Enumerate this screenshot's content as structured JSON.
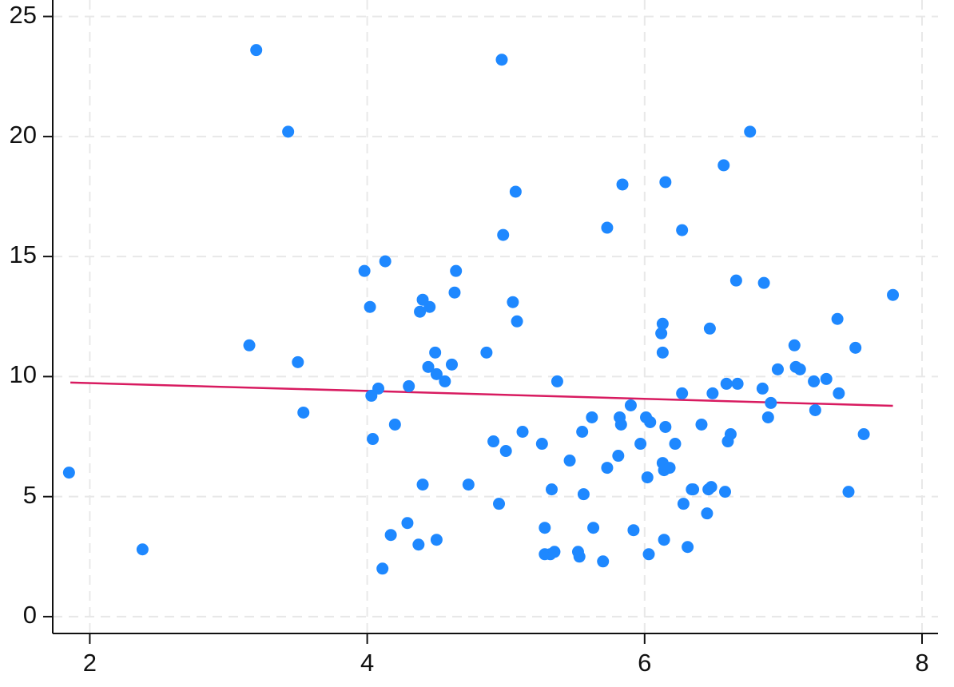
{
  "chart_data": {
    "type": "scatter",
    "title": "",
    "xlabel": "",
    "ylabel": "",
    "xlim": [
      1.8,
      8.0
    ],
    "ylim": [
      -1.2,
      25.8
    ],
    "x_ticks": [
      2,
      4,
      6,
      8
    ],
    "y_ticks": [
      0,
      5,
      10,
      15,
      20,
      25
    ],
    "x_tick_labels": [
      "2",
      "4",
      "6",
      "8"
    ],
    "y_tick_labels": [
      "0",
      "5",
      "10",
      "15",
      "20",
      "25"
    ],
    "grid": true,
    "legend": "none",
    "colors": {
      "points": "#1E88FF",
      "trend_line": "#D81B60",
      "grid": "#E8E8E8",
      "axis": "#111111"
    },
    "series": [
      {
        "type": "scatter",
        "x": [
          1.85,
          2.38,
          3.15,
          3.2,
          3.43,
          3.5,
          3.54,
          3.98,
          4.03,
          4.02,
          4.04,
          4.08,
          4.11,
          4.13,
          4.17,
          4.2,
          4.29,
          4.3,
          4.37,
          4.38,
          4.4,
          4.4,
          4.44,
          4.45,
          4.49,
          4.5,
          4.5,
          4.56,
          4.61,
          4.63,
          4.64,
          4.73,
          4.86,
          4.91,
          4.95,
          4.97,
          4.98,
          5.0,
          5.05,
          5.07,
          5.08,
          5.12,
          5.26,
          5.28,
          5.28,
          5.32,
          5.33,
          5.35,
          5.37,
          5.46,
          5.52,
          5.53,
          5.55,
          5.56,
          5.62,
          5.63,
          5.7,
          5.73,
          5.73,
          5.81,
          5.82,
          5.83,
          5.84,
          5.9,
          5.92,
          5.97,
          6.01,
          6.02,
          6.03,
          6.04,
          6.12,
          6.13,
          6.13,
          6.13,
          6.14,
          6.14,
          6.15,
          6.15,
          6.18,
          6.22,
          6.27,
          6.27,
          6.28,
          6.31,
          6.34,
          6.35,
          6.41,
          6.45,
          6.46,
          6.47,
          6.48,
          6.49,
          6.57,
          6.58,
          6.59,
          6.6,
          6.62,
          6.66,
          6.67,
          6.76,
          6.85,
          6.86,
          6.89,
          6.91,
          6.96,
          7.08,
          7.09,
          7.12,
          7.22,
          7.23,
          7.31,
          7.39,
          7.4,
          7.47,
          7.52,
          7.58,
          7.79
        ],
        "y": [
          6.0,
          2.8,
          11.3,
          23.6,
          20.2,
          10.6,
          8.5,
          14.4,
          9.2,
          12.9,
          7.4,
          9.5,
          2.0,
          14.8,
          3.4,
          8.0,
          3.9,
          9.6,
          3.0,
          12.7,
          13.2,
          5.5,
          10.4,
          12.9,
          11.0,
          10.1,
          3.2,
          9.8,
          10.5,
          13.5,
          14.4,
          5.5,
          11.0,
          7.3,
          4.7,
          23.2,
          15.9,
          6.9,
          13.1,
          17.7,
          12.3,
          7.7,
          7.2,
          3.7,
          2.6,
          2.6,
          5.3,
          2.7,
          9.8,
          6.5,
          2.7,
          2.5,
          7.7,
          5.1,
          8.3,
          3.7,
          2.3,
          16.2,
          6.2,
          6.7,
          8.3,
          8.0,
          18.0,
          8.8,
          3.6,
          7.2,
          8.3,
          5.8,
          2.6,
          8.1,
          11.8,
          12.2,
          11.0,
          6.4,
          6.1,
          3.2,
          18.1,
          7.9,
          6.2,
          7.2,
          16.1,
          9.3,
          4.7,
          2.9,
          5.3,
          5.3,
          8.0,
          4.3,
          5.3,
          12.0,
          5.4,
          9.3,
          18.8,
          5.2,
          9.7,
          7.3,
          7.6,
          14.0,
          9.7,
          20.2,
          9.5,
          13.9,
          8.3,
          8.9,
          10.3,
          11.3,
          10.4,
          10.3,
          9.8,
          8.6,
          9.9,
          12.4,
          9.3,
          5.2,
          11.2,
          7.6,
          13.4
        ]
      },
      {
        "type": "line",
        "x": [
          1.86,
          7.79
        ],
        "y": [
          9.75,
          8.78
        ]
      }
    ]
  }
}
